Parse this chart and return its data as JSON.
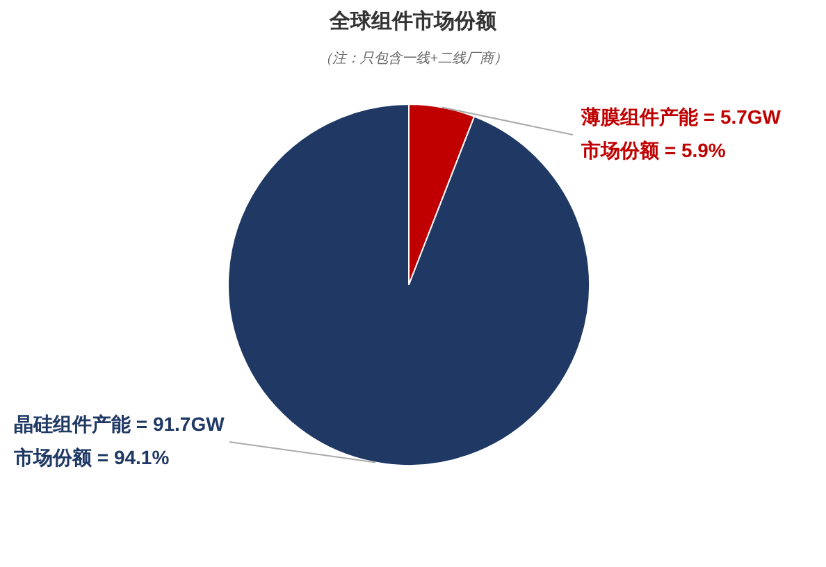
{
  "chart_data": {
    "type": "pie",
    "title": "全球组件市场份额",
    "subtitle": "（注：只包含一线+二线厂商）",
    "categories": [
      null,
      null
    ],
    "values": [
      5.9,
      94.1
    ],
    "colors": [
      "#c00000",
      "#1f3864"
    ],
    "value_labels": [
      "薄膜组件产能 = 5.7GW\n市场份额 = 5.9%",
      "晶硅组件产能 = 91.7GW\n市场份额 = 94.1%"
    ]
  }
}
